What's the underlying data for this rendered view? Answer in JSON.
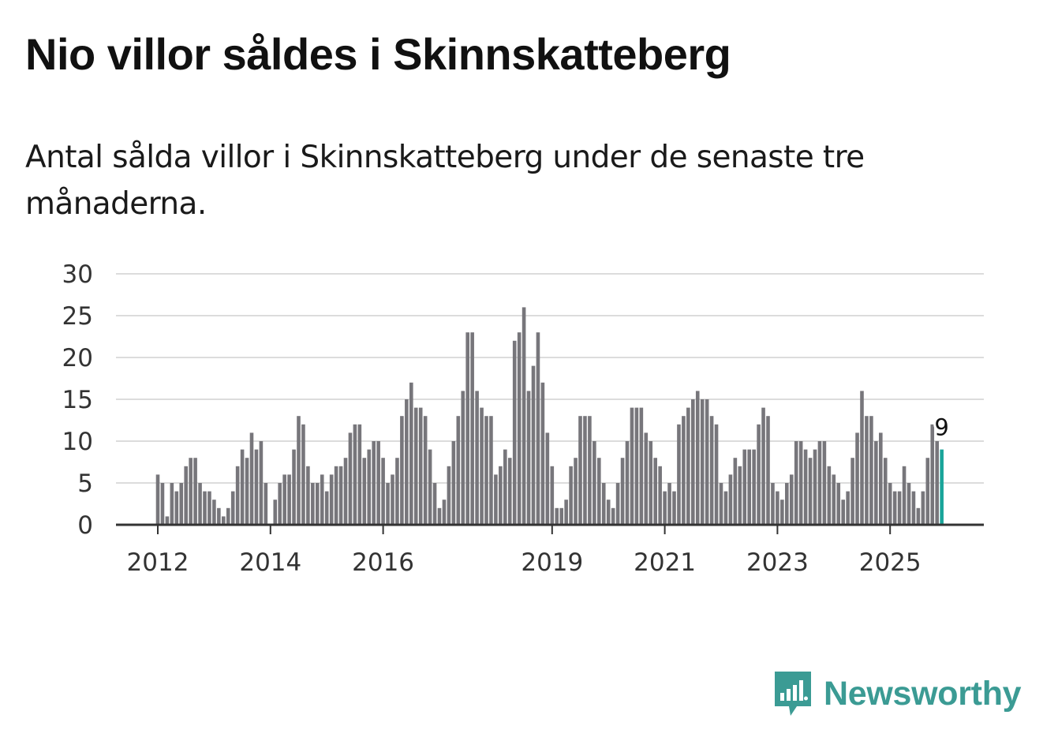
{
  "title": "Nio villor såldes i Skinnskatteberg",
  "subtitle": "Antal sålda villor i Skinnskatteberg under de senaste tre månaderna.",
  "brand": "Newsworthy",
  "colors": {
    "bar": "#77767b",
    "highlight": "#1aa59a",
    "grid": "#dcdcdc",
    "axis": "#333333",
    "brand": "#3b9b94"
  },
  "chart_data": {
    "type": "bar",
    "title": "Nio villor såldes i Skinnskatteberg",
    "xlabel": "",
    "ylabel": "",
    "ylim": [
      0,
      30
    ],
    "yticks": [
      0,
      5,
      10,
      15,
      20,
      25,
      30
    ],
    "x_start": "2012-01",
    "xticks": [
      {
        "label": "2012",
        "index": 0
      },
      {
        "label": "2014",
        "index": 24
      },
      {
        "label": "2016",
        "index": 48
      },
      {
        "label": "2019",
        "index": 84
      },
      {
        "label": "2021",
        "index": 108
      },
      {
        "label": "2023",
        "index": 132
      },
      {
        "label": "2025",
        "index": 156
      }
    ],
    "values": [
      6,
      5,
      1,
      5,
      4,
      5,
      7,
      8,
      8,
      5,
      4,
      4,
      3,
      2,
      1,
      2,
      4,
      7,
      9,
      8,
      11,
      9,
      10,
      5,
      0,
      3,
      5,
      6,
      6,
      9,
      13,
      12,
      7,
      5,
      5,
      6,
      4,
      6,
      7,
      7,
      8,
      11,
      12,
      12,
      8,
      9,
      10,
      10,
      8,
      5,
      6,
      8,
      13,
      15,
      17,
      14,
      14,
      13,
      9,
      5,
      2,
      3,
      7,
      10,
      13,
      16,
      23,
      23,
      16,
      14,
      13,
      13,
      6,
      7,
      9,
      8,
      22,
      23,
      26,
      16,
      19,
      23,
      17,
      11,
      7,
      2,
      2,
      3,
      7,
      8,
      13,
      13,
      13,
      10,
      8,
      5,
      3,
      2,
      5,
      8,
      10,
      14,
      14,
      14,
      11,
      10,
      8,
      7,
      4,
      5,
      4,
      12,
      13,
      14,
      15,
      16,
      15,
      15,
      13,
      12,
      5,
      4,
      6,
      8,
      7,
      9,
      9,
      9,
      12,
      14,
      13,
      5,
      4,
      3,
      5,
      6,
      10,
      10,
      9,
      8,
      9,
      10,
      10,
      7,
      6,
      5,
      3,
      4,
      8,
      11,
      16,
      13,
      13,
      10,
      11,
      8,
      5,
      4,
      4,
      7,
      5,
      4,
      2,
      4,
      8,
      12,
      10,
      9
    ],
    "highlight": {
      "index": 167,
      "value": 9,
      "label": "9"
    }
  }
}
